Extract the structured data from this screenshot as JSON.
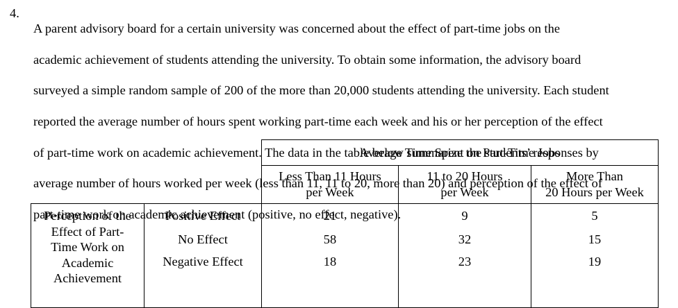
{
  "question": {
    "number": "4.",
    "text_lines": [
      "A parent advisory board for a certain university was concerned about the effect of part-time jobs on the",
      "academic achievement of students attending the university. To obtain some information, the advisory board",
      "surveyed a simple random sample of 200 of the more than 20,000 students attending the university. Each student",
      "reported the average number of hours spent working part-time each week and his or her perception of the effect",
      "of part-time work on academic achievement. The data in the table below summarize the students’ responses by",
      "average number of hours worked per week (less than 11, 11 to 20, more than 20) and perception of the effect of",
      "part-time work on academic achievement (positive, no effect, negative)."
    ]
  },
  "table": {
    "group_header": "Average Time Spent on Part-Time Jobs",
    "columns": [
      {
        "line1": "Less Than 11 Hours",
        "line2": "per Week"
      },
      {
        "line1": "11 to 20 Hours",
        "line2": "per Week"
      },
      {
        "line1": "More Than",
        "line2": "20 Hours per Week"
      }
    ],
    "row_group_label": [
      "Perception of the",
      "Effect of Part-",
      "Time Work on",
      "Academic",
      "Achievement"
    ],
    "rows": [
      {
        "label": "Positive Effect",
        "values": [
          "21",
          "9",
          "5"
        ]
      },
      {
        "label": "No Effect",
        "values": [
          "58",
          "32",
          "15"
        ]
      },
      {
        "label": "Negative Effect",
        "values": [
          "18",
          "23",
          "19"
        ]
      }
    ]
  }
}
